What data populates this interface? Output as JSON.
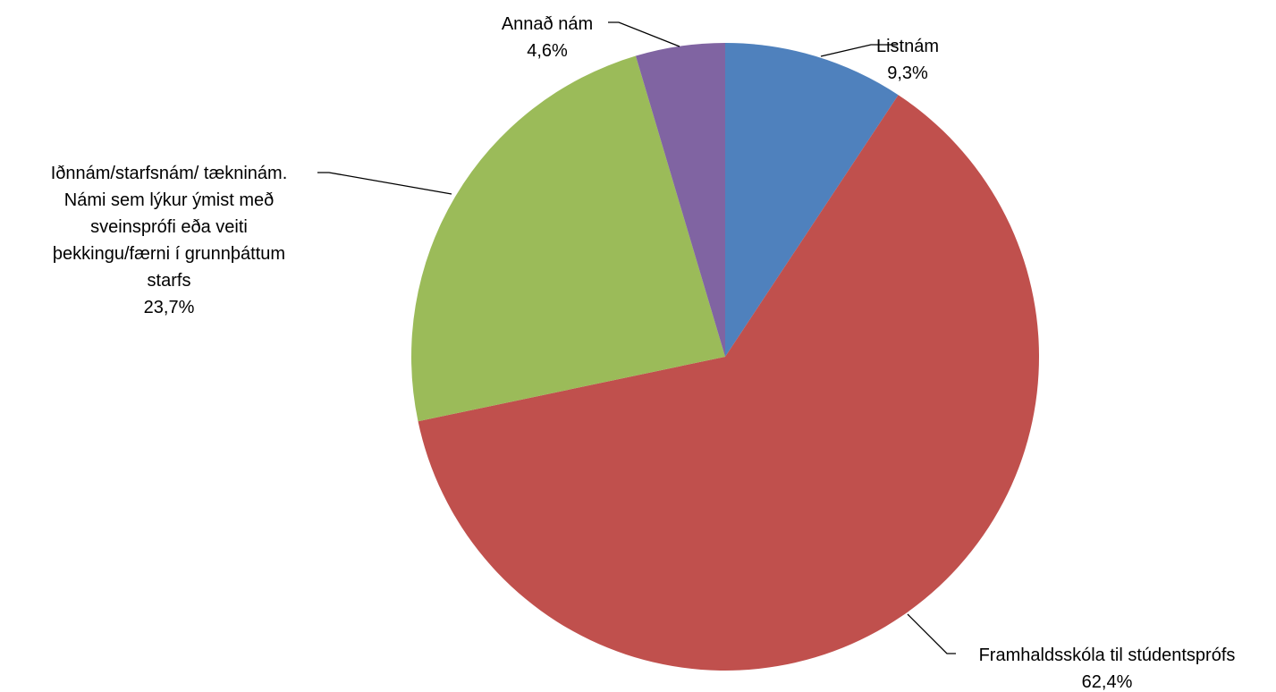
{
  "chart_data": {
    "type": "pie",
    "start_angle_deg": 0,
    "direction": "clockwise",
    "slices": [
      {
        "label": "Listnám",
        "value": 9.3,
        "value_label": "9,3%",
        "color": "#4F81BD",
        "label_lines": [
          "Listnám"
        ]
      },
      {
        "label": "Framhaldsskóla til stúdentsprófs",
        "value": 62.4,
        "value_label": "62,4%",
        "color": "#C0504D",
        "label_lines": [
          "Framhaldsskóla til stúdentsprófs"
        ]
      },
      {
        "label": "Iðnnám/starfsnám/ tækninám. Námi sem lýkur ýmist með sveinsprófi eða veiti þekkingu/færni í grunnþáttum starfs",
        "value": 23.7,
        "value_label": "23,7%",
        "color": "#9BBB59",
        "label_lines": [
          "Iðnnám/starfsnám/ tækninám.",
          "Námi sem lýkur ýmist með",
          "sveinsprófi eða veiti",
          "þekkingu/færni í grunnþáttum",
          "starfs"
        ]
      },
      {
        "label": "Annað nám",
        "value": 4.6,
        "value_label": "4,6%",
        "color": "#8064A2",
        "label_lines": [
          "Annað nám"
        ]
      }
    ]
  }
}
